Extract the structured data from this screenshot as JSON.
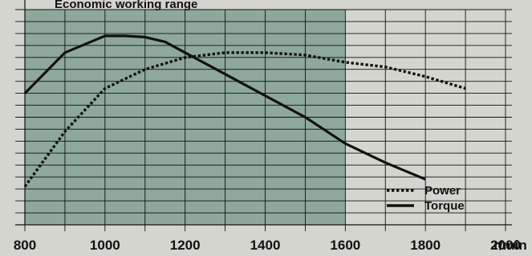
{
  "chart_data": {
    "type": "line",
    "title": "Economic working range",
    "xlabel": "r/min",
    "ylabel": "",
    "x_ticks": [
      800,
      1000,
      1200,
      1400,
      1600,
      1800,
      2000
    ],
    "x_unit_label": "r/min",
    "xlim": [
      800,
      2000
    ],
    "ylim": [
      0,
      9
    ],
    "grid": true,
    "legend_position": "bottom-right",
    "highlight_range": {
      "label": "Economic working range",
      "x_start": 800,
      "x_end": 1600
    },
    "series": [
      {
        "name": "Power",
        "style": "dotted",
        "x": [
          800,
          900,
          1000,
          1100,
          1200,
          1300,
          1400,
          1500,
          1600,
          1700,
          1800,
          1900
        ],
        "y": [
          1.6,
          3.9,
          5.7,
          6.5,
          7.0,
          7.2,
          7.2,
          7.1,
          6.8,
          6.6,
          6.2,
          5.7
        ]
      },
      {
        "name": "Torque",
        "style": "solid",
        "x": [
          800,
          900,
          1000,
          1050,
          1100,
          1150,
          1200,
          1300,
          1400,
          1500,
          1600,
          1700,
          1800
        ],
        "y": [
          5.5,
          7.2,
          7.9,
          7.9,
          7.85,
          7.65,
          7.2,
          6.3,
          5.4,
          4.5,
          3.4,
          2.6,
          1.9
        ]
      }
    ]
  },
  "colors": {
    "background": "#d5d5cf",
    "highlight": "#8ea89c",
    "grid": "#111111",
    "line": "#111111"
  }
}
